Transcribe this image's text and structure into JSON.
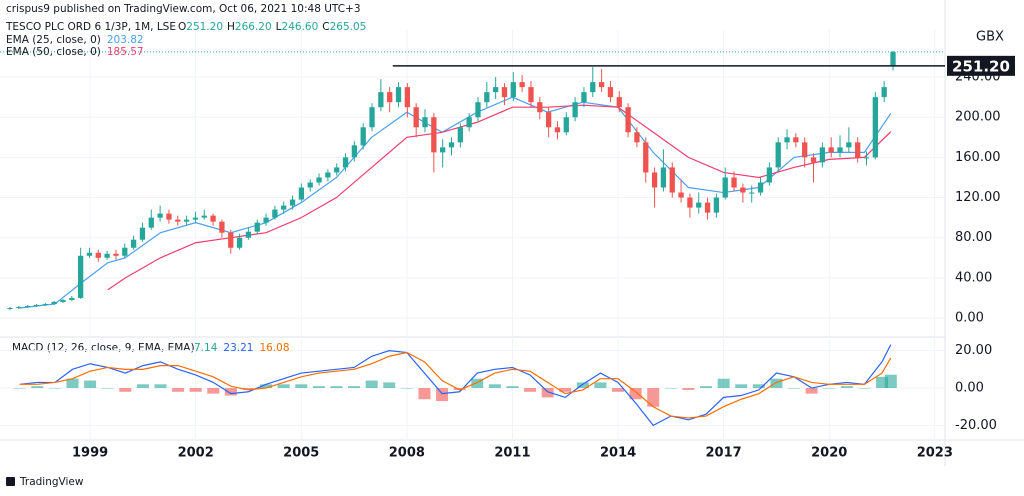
{
  "chart_data": {
    "type": "candlestick",
    "title": "crispus9 published on TradingView.com, Oct 06, 2021 10:48 UTC+3",
    "symbol": "TESCO PLC ORD 6 1/3P, 1M, LSE",
    "ohlc_prefixes": [
      "O",
      "H",
      "L",
      "C"
    ],
    "ohlc_labels": [
      "251.20",
      "266.20",
      "246.60",
      "265.05"
    ],
    "up_color": "#26a69a",
    "down_color": "#ef5350",
    "candles": [
      [
        9,
        11,
        8,
        10
      ],
      [
        10,
        12,
        9,
        11
      ],
      [
        11,
        13,
        10,
        12
      ],
      [
        12,
        14,
        11,
        13
      ],
      [
        13,
        15,
        12,
        14
      ],
      [
        14,
        17,
        13,
        16
      ],
      [
        16,
        19,
        15,
        18
      ],
      [
        18,
        22,
        17,
        20
      ],
      [
        20,
        70,
        19,
        62
      ],
      [
        62,
        70,
        60,
        65
      ],
      [
        65,
        68,
        56,
        60
      ],
      [
        60,
        67,
        58,
        64
      ],
      [
        64,
        68,
        58,
        62
      ],
      [
        62,
        74,
        60,
        70
      ],
      [
        70,
        82,
        68,
        78
      ],
      [
        78,
        95,
        76,
        90
      ],
      [
        90,
        108,
        88,
        100
      ],
      [
        100,
        112,
        96,
        104
      ],
      [
        104,
        108,
        94,
        98
      ],
      [
        98,
        102,
        92,
        96
      ],
      [
        96,
        102,
        92,
        98
      ],
      [
        98,
        106,
        95,
        100
      ],
      [
        100,
        108,
        98,
        102
      ],
      [
        102,
        104,
        92,
        96
      ],
      [
        96,
        98,
        80,
        85
      ],
      [
        85,
        88,
        64,
        70
      ],
      [
        70,
        84,
        68,
        80
      ],
      [
        80,
        90,
        78,
        86
      ],
      [
        86,
        98,
        84,
        95
      ],
      [
        95,
        104,
        92,
        100
      ],
      [
        100,
        112,
        98,
        108
      ],
      [
        108,
        116,
        104,
        112
      ],
      [
        112,
        122,
        108,
        118
      ],
      [
        118,
        134,
        116,
        130
      ],
      [
        130,
        138,
        126,
        135
      ],
      [
        135,
        144,
        132,
        140
      ],
      [
        140,
        148,
        136,
        145
      ],
      [
        145,
        154,
        142,
        150
      ],
      [
        150,
        164,
        146,
        160
      ],
      [
        160,
        176,
        156,
        172
      ],
      [
        172,
        194,
        168,
        190
      ],
      [
        190,
        214,
        186,
        210
      ],
      [
        210,
        238,
        206,
        225
      ],
      [
        225,
        230,
        205,
        215
      ],
      [
        215,
        235,
        210,
        230
      ],
      [
        230,
        234,
        200,
        210
      ],
      [
        210,
        214,
        180,
        190
      ],
      [
        190,
        208,
        185,
        200
      ],
      [
        200,
        204,
        145,
        165
      ],
      [
        165,
        178,
        150,
        170
      ],
      [
        170,
        180,
        162,
        175
      ],
      [
        175,
        194,
        170,
        190
      ],
      [
        190,
        204,
        186,
        200
      ],
      [
        200,
        220,
        196,
        215
      ],
      [
        215,
        235,
        210,
        225
      ],
      [
        225,
        240,
        218,
        230
      ],
      [
        230,
        234,
        212,
        220
      ],
      [
        220,
        245,
        216,
        235
      ],
      [
        235,
        242,
        225,
        230
      ],
      [
        230,
        236,
        210,
        215
      ],
      [
        215,
        220,
        198,
        205
      ],
      [
        205,
        210,
        180,
        190
      ],
      [
        190,
        196,
        178,
        185
      ],
      [
        185,
        205,
        182,
        200
      ],
      [
        200,
        220,
        196,
        215
      ],
      [
        215,
        230,
        210,
        225
      ],
      [
        225,
        250,
        220,
        235
      ],
      [
        235,
        248,
        225,
        230
      ],
      [
        230,
        236,
        215,
        220
      ],
      [
        220,
        226,
        205,
        210
      ],
      [
        210,
        214,
        180,
        185
      ],
      [
        185,
        190,
        170,
        175
      ],
      [
        175,
        180,
        135,
        145
      ],
      [
        145,
        150,
        110,
        130
      ],
      [
        130,
        168,
        126,
        150
      ],
      [
        150,
        155,
        120,
        125
      ],
      [
        125,
        138,
        115,
        120
      ],
      [
        120,
        124,
        100,
        110
      ],
      [
        110,
        125,
        104,
        115
      ],
      [
        115,
        120,
        98,
        105
      ],
      [
        105,
        124,
        100,
        120
      ],
      [
        120,
        150,
        118,
        140
      ],
      [
        140,
        146,
        126,
        130
      ],
      [
        130,
        134,
        115,
        125
      ],
      [
        125,
        132,
        115,
        125
      ],
      [
        125,
        140,
        122,
        135
      ],
      [
        135,
        155,
        132,
        150
      ],
      [
        150,
        180,
        146,
        175
      ],
      [
        175,
        188,
        168,
        180
      ],
      [
        180,
        184,
        170,
        175
      ],
      [
        175,
        180,
        150,
        160
      ],
      [
        160,
        164,
        135,
        155
      ],
      [
        155,
        175,
        150,
        170
      ],
      [
        170,
        180,
        160,
        165
      ],
      [
        165,
        182,
        160,
        170
      ],
      [
        170,
        190,
        165,
        175
      ],
      [
        175,
        180,
        155,
        160
      ],
      [
        160,
        166,
        152,
        160
      ],
      [
        160,
        225,
        158,
        220
      ],
      [
        220,
        236,
        215,
        230
      ],
      [
        251.2,
        266.2,
        246.6,
        265.05
      ]
    ],
    "xlim": [
      1996.44,
      2023.29
    ],
    "xticks": [
      1999,
      2002,
      2005,
      2008,
      2011,
      2014,
      2017,
      2020,
      2023
    ],
    "ylim": [
      -18.9,
      286.9
    ],
    "yticks": [
      {
        "value": 0,
        "label": "0.00"
      },
      {
        "value": 40,
        "label": "40.00"
      },
      {
        "value": 80,
        "label": "80.00"
      },
      {
        "value": 120,
        "label": "120.00"
      },
      {
        "value": 160,
        "label": "160.00"
      },
      {
        "value": 200,
        "label": "200.00"
      },
      {
        "value": 240,
        "label": "240.00"
      }
    ],
    "y_unit": "GBX",
    "hline": {
      "value": 251.2,
      "label": "251.20",
      "x_start": 2007.6
    },
    "series": [
      {
        "name": "EMA (25, close, 0)",
        "color": "#4a9ff5",
        "last_label": "203.82",
        "x": [
          1997,
          1998,
          1998.75,
          1999.5,
          2000,
          2001,
          2002,
          2003,
          2004,
          2005,
          2006,
          2007,
          2008,
          2009,
          2010,
          2011,
          2012,
          2013,
          2014,
          2015,
          2016,
          2017,
          2018,
          2019,
          2020,
          2021,
          2021.75
        ],
        "values": [
          10,
          14,
          35,
          55,
          60,
          85,
          95,
          85,
          95,
          115,
          140,
          180,
          205,
          185,
          205,
          220,
          205,
          215,
          210,
          165,
          130,
          125,
          130,
          160,
          165,
          165,
          203.82
        ]
      },
      {
        "name": "EMA (50, close, 0)",
        "color": "#f23d6d",
        "last_label": "185.57",
        "x": [
          1999.5,
          2000,
          2001,
          2002,
          2003,
          2004,
          2005,
          2006,
          2007,
          2008,
          2009,
          2010,
          2011,
          2012,
          2013,
          2014,
          2015,
          2016,
          2017,
          2018,
          2019,
          2020,
          2021,
          2021.75
        ],
        "values": [
          28,
          40,
          60,
          75,
          80,
          85,
          100,
          120,
          150,
          180,
          185,
          195,
          210,
          210,
          212,
          210,
          185,
          160,
          145,
          140,
          150,
          158,
          160,
          185.57
        ]
      }
    ],
    "macd": {
      "title": "MACD (12, 26, close, 9, EMA, EMA)",
      "ylim": [
        -27.8,
        27.3
      ],
      "yticks": [
        {
          "value": 20,
          "label": "20.00"
        },
        {
          "value": 0,
          "label": "0.00"
        },
        {
          "value": -20,
          "label": "-20.00"
        }
      ],
      "x": [
        1997,
        1997.5,
        1998,
        1998.5,
        1999,
        1999.5,
        2000,
        2000.5,
        2001,
        2001.5,
        2002,
        2002.5,
        2003,
        2003.5,
        2004,
        2004.5,
        2005,
        2005.5,
        2006,
        2006.5,
        2007,
        2007.5,
        2008,
        2008.5,
        2009,
        2009.5,
        2010,
        2010.5,
        2011,
        2011.5,
        2012,
        2012.5,
        2013,
        2013.5,
        2014,
        2014.5,
        2015,
        2015.5,
        2016,
        2016.5,
        2017,
        2017.5,
        2018,
        2018.5,
        2019,
        2019.5,
        2020,
        2020.5,
        2021,
        2021.5,
        2021.75
      ],
      "histogram": {
        "up_color": "#26a69a",
        "down_color": "#ef5350",
        "last_label": "7.14",
        "values": [
          0,
          1,
          0,
          5,
          4,
          0,
          -2,
          2,
          2,
          -2,
          -2,
          -3,
          -4,
          -1,
          2,
          2,
          2,
          1,
          1,
          1,
          4,
          3,
          0,
          -6,
          -7,
          -1,
          5,
          2,
          1,
          -2,
          -5,
          -2,
          3,
          3,
          -2,
          -6,
          -10,
          0,
          -1,
          1,
          5,
          2,
          2,
          5,
          0,
          -3,
          0,
          1,
          0,
          6,
          7.14
        ]
      },
      "series": [
        {
          "color": "#2962ff",
          "last_label": "23.21",
          "values": [
            2,
            3,
            3,
            10,
            13,
            11,
            8,
            12,
            14,
            10,
            7,
            3,
            -3,
            -2,
            2,
            5,
            8,
            9,
            10,
            11,
            17,
            20,
            19,
            8,
            -3,
            -2,
            8,
            10,
            11,
            7,
            -2,
            -5,
            2,
            8,
            3,
            -8,
            -20,
            -15,
            -17,
            -14,
            -5,
            -4,
            -1,
            8,
            6,
            0,
            2,
            3,
            2,
            14,
            23.21
          ]
        },
        {
          "color": "#ff6d00",
          "last_label": "16.08",
          "values": [
            2,
            2,
            3,
            5,
            9,
            11,
            10,
            10,
            12,
            12,
            9,
            6,
            1,
            -1,
            0,
            3,
            6,
            8,
            9,
            10,
            13,
            17,
            19,
            14,
            4,
            -1,
            3,
            8,
            10,
            9,
            3,
            -3,
            -1,
            5,
            5,
            -2,
            -10,
            -15,
            -16,
            -15,
            -10,
            -6,
            -3,
            3,
            6,
            3,
            2,
            2,
            2,
            8,
            16.08
          ]
        }
      ]
    },
    "brand": "TradingView"
  }
}
